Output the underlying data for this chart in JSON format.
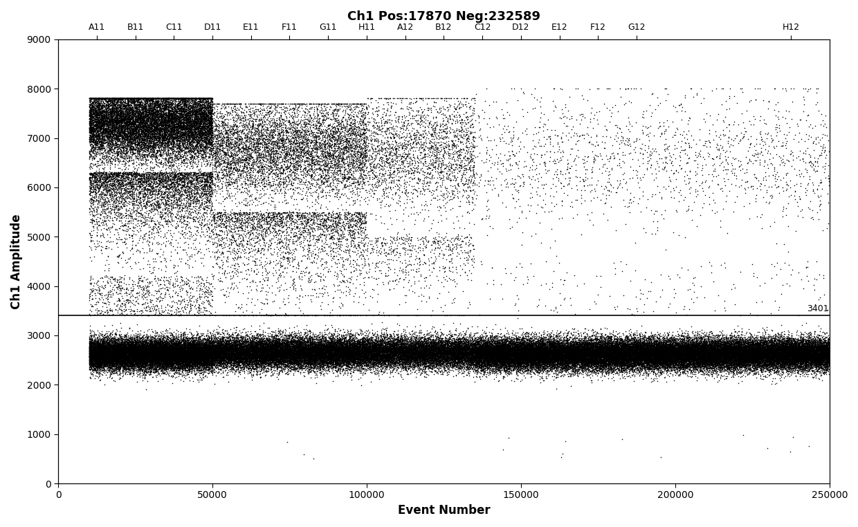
{
  "title": "Ch1 Pos:17870 Neg:232589",
  "xlabel": "Event Number",
  "ylabel": "Ch1 Amplitude",
  "ylim": [
    0,
    9000
  ],
  "xlim": [
    0,
    250000
  ],
  "threshold_y": 3401,
  "threshold_label": "3401",
  "well_labels": [
    "A11",
    "B11",
    "C11",
    "D11",
    "E11",
    "F11",
    "G11",
    "H11",
    "A12",
    "B12",
    "C12",
    "D12",
    "E12",
    "F12",
    "G12",
    "H12"
  ],
  "well_x_positions": [
    12500,
    25000,
    37500,
    50000,
    62500,
    75000,
    87500,
    100000,
    112500,
    125000,
    137500,
    150000,
    162500,
    175000,
    187500,
    237500
  ],
  "background_color": "#ffffff",
  "dot_color": "#000000",
  "dot_size": 1.2,
  "title_fontsize": 13,
  "axis_fontsize": 12,
  "tick_fontsize": 10,
  "well_label_fontsize": 9
}
